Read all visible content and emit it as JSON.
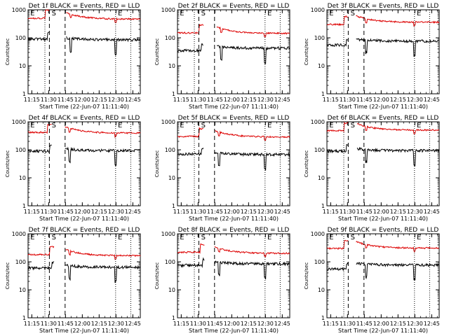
{
  "chart_data": {
    "layout": {
      "rows": 3,
      "cols": 3
    },
    "shared": {
      "type": "line",
      "xlabel": "Start Time (22-Jun-07 11:11:40)",
      "ylabel": "Counts/sec",
      "y_scale": "log",
      "ylim": [
        1,
        1000
      ],
      "y_ticks": [
        1,
        10,
        100,
        1000
      ],
      "y_tick_labels": [
        "1",
        "10",
        "100",
        "1000"
      ],
      "xlim_minutes": [
        0,
        100
      ],
      "x_ticks_minutes": [
        3.33,
        18.33,
        33.33,
        48.33,
        63.33,
        78.33,
        93.33
      ],
      "x_tick_labels": [
        "11:15",
        "11:30",
        "11:45",
        "12:00",
        "12:15",
        "12:30",
        "12:45"
      ],
      "dashed_markers_minutes": [
        19,
        33
      ],
      "dotted_markers_minutes": [
        15,
        78,
        91.5
      ],
      "marker_labels": [
        {
          "text": "E",
          "at_minutes": 2
        },
        {
          "text": "S",
          "at_minutes": 21
        },
        {
          "text": "E",
          "at_minutes": 80
        }
      ],
      "series": [
        {
          "name": "Events",
          "color": "#000000"
        },
        {
          "name": "LLD",
          "color": "#dd0000"
        }
      ]
    },
    "panels": [
      {
        "title": "Det 1f BLACK = Events, RED = LLD",
        "lld_base": 500,
        "events_base": 90,
        "lld_post": 650,
        "events_post": 100,
        "gap": [
          19,
          34
        ]
      },
      {
        "title": "Det 2f BLACK = Events, RED = LLD",
        "lld_base": 150,
        "events_base": 35,
        "lld_post": 200,
        "events_post": 50,
        "gap": [
          23,
          35
        ]
      },
      {
        "title": "Det 3f BLACK = Events, RED = LLD",
        "lld_base": 300,
        "events_base": 55,
        "lld_post": 500,
        "events_post": 90,
        "gap": [
          19,
          26
        ]
      },
      {
        "title": "Det 4f BLACK = Events, RED = LLD",
        "lld_base": 420,
        "events_base": 90,
        "lld_post": 550,
        "events_post": 110,
        "gap": [
          21,
          33
        ]
      },
      {
        "title": "Det 5f BLACK = Events, RED = LLD",
        "lld_base": 300,
        "events_base": 70,
        "lld_post": 400,
        "events_post": 80,
        "gap": [
          23,
          33
        ]
      },
      {
        "title": "Det 6f BLACK = Events, RED = LLD",
        "lld_base": 480,
        "events_base": 90,
        "lld_post": 700,
        "events_post": 110,
        "gap": [
          19,
          27
        ]
      },
      {
        "title": "Det 7f BLACK = Events, RED = LLD",
        "lld_base": 180,
        "events_base": 60,
        "lld_post": 230,
        "events_post": 75,
        "gap": [
          23,
          33
        ]
      },
      {
        "title": "Det 8f BLACK = Events, RED = LLD",
        "lld_base": 220,
        "events_base": 75,
        "lld_post": 280,
        "events_post": 100,
        "gap": [
          24,
          33
        ]
      },
      {
        "title": "Det 9f BLACK = Events, RED = LLD",
        "lld_base": 300,
        "events_base": 55,
        "lld_post": 430,
        "events_post": 90,
        "gap": [
          19,
          26
        ]
      }
    ]
  }
}
